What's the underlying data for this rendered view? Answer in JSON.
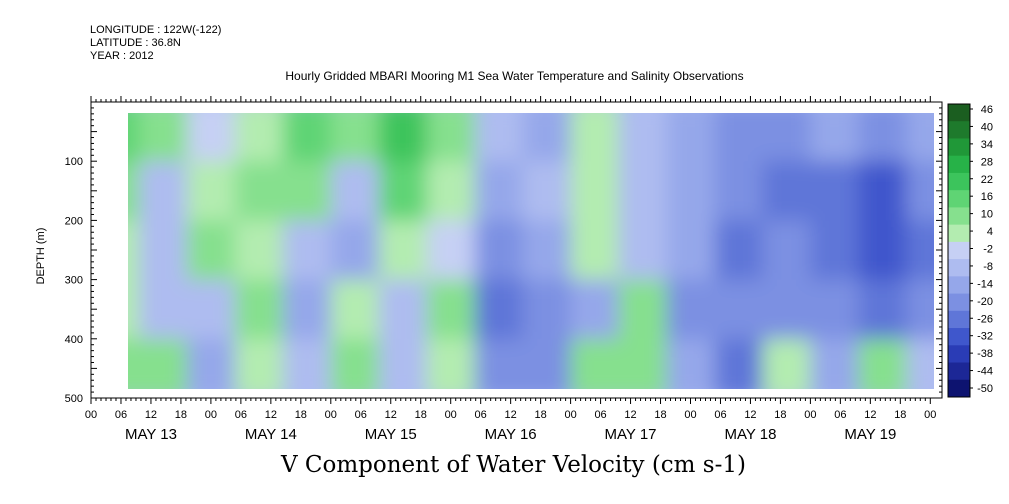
{
  "header": {
    "longitude": "LONGITUDE : 122W(-122)",
    "latitude": "LATITUDE : 36.8N",
    "year": "YEAR : 2012"
  },
  "chart_data": {
    "type": "heatmap",
    "title": "Hourly Gridded MBARI Mooring M1 Sea Water Temperature and Salinity Observations",
    "variable_title": "V Component of Water Velocity (cm s-1)",
    "ylabel": "DEPTH (m)",
    "y_axis": {
      "range": [
        500,
        0
      ],
      "ticks": [
        100,
        200,
        300,
        400,
        500
      ]
    },
    "x_axis": {
      "hour_ticks": [
        "00",
        "06",
        "12",
        "18",
        "00",
        "06",
        "12",
        "18",
        "00",
        "06",
        "12",
        "18",
        "00",
        "06",
        "12",
        "18",
        "00",
        "06",
        "12",
        "18",
        "00",
        "06",
        "12",
        "18",
        "00",
        "06",
        "12",
        "18",
        "00"
      ],
      "day_labels": [
        "MAY 13",
        "MAY 14",
        "MAY 15",
        "MAY 16",
        "MAY 17",
        "MAY 18",
        "MAY 19"
      ]
    },
    "colorbar": {
      "labels": [
        "46",
        "40",
        "34",
        "28",
        "22",
        "16",
        "10",
        "4",
        "-2",
        "-8",
        "-14",
        "-20",
        "-26",
        "-32",
        "-38",
        "-44",
        "-50"
      ],
      "colors": [
        "#1b5e20",
        "#1e7a2c",
        "#209838",
        "#27b248",
        "#3cc45c",
        "#5fd474",
        "#86e08e",
        "#b3ecb0",
        "#c6d0f4",
        "#aebcf0",
        "#95a7ea",
        "#7c90e2",
        "#5f76d8",
        "#3f57cc",
        "#2a3cb6",
        "#1c2796",
        "#0d1370"
      ]
    },
    "samples": {
      "days": [
        0.2,
        0.6,
        1.0,
        1.4,
        1.8,
        2.2,
        2.6,
        3.0,
        3.4,
        3.8,
        4.2,
        4.6,
        5.0,
        5.4,
        5.8,
        6.2,
        6.6,
        7.0
      ],
      "depths_m": [
        50,
        150,
        250,
        350,
        450
      ],
      "v_cm_s": [
        [
          18,
          12,
          -2,
          6,
          14,
          8,
          20,
          12,
          -6,
          -10,
          4,
          -8,
          -12,
          -16,
          -18,
          -14,
          -16,
          -10
        ],
        [
          10,
          -4,
          6,
          10,
          8,
          -8,
          16,
          6,
          -10,
          -6,
          6,
          -6,
          -10,
          -20,
          -22,
          -26,
          -28,
          -20
        ],
        [
          6,
          -6,
          12,
          4,
          -4,
          -12,
          2,
          -2,
          -18,
          -14,
          4,
          -4,
          -14,
          -22,
          -20,
          -22,
          -30,
          -24
        ],
        [
          4,
          -8,
          -6,
          10,
          -10,
          6,
          -8,
          10,
          -24,
          -18,
          -10,
          8,
          -18,
          -20,
          -18,
          -20,
          -22,
          -18
        ],
        [
          8,
          10,
          -10,
          6,
          -8,
          10,
          -4,
          6,
          -20,
          -16,
          8,
          10,
          -14,
          -22,
          6,
          -10,
          8,
          -6
        ]
      ]
    }
  }
}
